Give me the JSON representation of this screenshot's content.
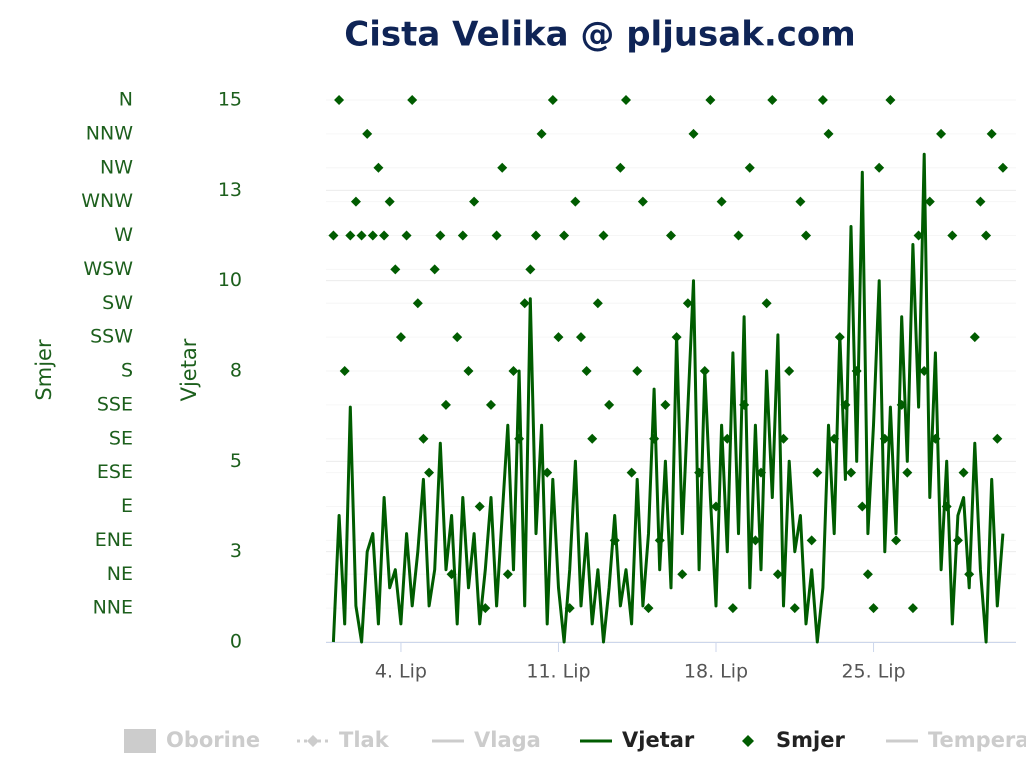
{
  "chart_data": {
    "type": "line",
    "title": "Cista Velika @ pljusak.com",
    "x": [
      1,
      1.25,
      1.5,
      1.75,
      2,
      2.25,
      2.5,
      2.75,
      3,
      3.25,
      3.5,
      3.75,
      4,
      4.25,
      4.5,
      4.75,
      5,
      5.25,
      5.5,
      5.75,
      6,
      6.25,
      6.5,
      6.75,
      7,
      7.25,
      7.5,
      7.75,
      8,
      8.25,
      8.5,
      8.75,
      9,
      9.25,
      9.5,
      9.75,
      10,
      10.25,
      10.5,
      10.75,
      11,
      11.25,
      11.5,
      11.75,
      12,
      12.25,
      12.5,
      12.75,
      13,
      13.25,
      13.5,
      13.75,
      14,
      14.25,
      14.5,
      14.75,
      15,
      15.25,
      15.5,
      15.75,
      16,
      16.25,
      16.5,
      16.75,
      17,
      17.25,
      17.5,
      17.75,
      18,
      18.25,
      18.5,
      18.75,
      19,
      19.25,
      19.5,
      19.75,
      20,
      20.25,
      20.5,
      20.75,
      21,
      21.25,
      21.5,
      21.75,
      22,
      22.25,
      22.5,
      22.75,
      23,
      23.25,
      23.5,
      23.75,
      24,
      24.25,
      24.5,
      24.75,
      25,
      25.25,
      25.5,
      25.75,
      26,
      26.25,
      26.5,
      26.75,
      27,
      27.25,
      27.5,
      27.75,
      28,
      28.25,
      28.5,
      28.75,
      29,
      29.25,
      29.5,
      29.75,
      30,
      30.25,
      30.5,
      30.75
    ],
    "xlim": [
      0.67,
      31.33
    ],
    "xticks": [
      {
        "value": 4,
        "label": "4. Lip"
      },
      {
        "value": 11,
        "label": "11. Lip"
      },
      {
        "value": 18,
        "label": "18. Lip"
      },
      {
        "value": 25,
        "label": "25. Lip"
      }
    ],
    "y_label": "Vjetar",
    "ylim": [
      0,
      15
    ],
    "yticks": [
      0,
      {
        "value": 2.5,
        "label": "3"
      },
      5,
      {
        "value": 7.5,
        "label": "8"
      },
      10,
      {
        "value": 12.5,
        "label": "13"
      },
      15
    ],
    "y2_label": "Smjer",
    "y2lim": [
      0,
      360
    ],
    "y2ticks": [
      {
        "value": 22.5,
        "label": "NNE"
      },
      {
        "value": 45,
        "label": "NE"
      },
      {
        "value": 67.5,
        "label": "ENE"
      },
      {
        "value": 90,
        "label": "E"
      },
      {
        "value": 112.5,
        "label": "ESE"
      },
      {
        "value": 135,
        "label": "SE"
      },
      {
        "value": 157.5,
        "label": "SSE"
      },
      {
        "value": 180,
        "label": "S"
      },
      {
        "value": 202.5,
        "label": "SSW"
      },
      {
        "value": 225,
        "label": "SW"
      },
      {
        "value": 247.5,
        "label": "WSW"
      },
      {
        "value": 270,
        "label": "W"
      },
      {
        "value": 292.5,
        "label": "WNW"
      },
      {
        "value": 315,
        "label": "NW"
      },
      {
        "value": 337.5,
        "label": "NNW"
      },
      {
        "value": 360,
        "label": "N"
      }
    ],
    "grid": true,
    "series": [
      {
        "name": "Vjetar",
        "color": "#005c00",
        "type": "line",
        "values": [
          0,
          3.5,
          0.5,
          6.5,
          1,
          0,
          2.5,
          3,
          0.5,
          4,
          1.5,
          2,
          0.5,
          3,
          1,
          2.5,
          4.5,
          1,
          2,
          5.5,
          2,
          3.5,
          0.5,
          4,
          1.5,
          3,
          0.5,
          2,
          4,
          1,
          3.5,
          6,
          2,
          7.5,
          1,
          9.5,
          3,
          6,
          0.5,
          4.5,
          1.5,
          0,
          2,
          5,
          1,
          3,
          0.5,
          2,
          0,
          1.5,
          3.5,
          1,
          2,
          0.5,
          4.5,
          1,
          3,
          7,
          2,
          5,
          1.5,
          8.5,
          3,
          6.5,
          10,
          2,
          7.5,
          4,
          1,
          6,
          2.5,
          8,
          3,
          9,
          1.5,
          6,
          2,
          7.5,
          4,
          8.5,
          1,
          5,
          2.5,
          3.5,
          0.5,
          2,
          0,
          1.5,
          6,
          3,
          8.5,
          4.5,
          11.5,
          5,
          13,
          3,
          6,
          10,
          2.5,
          6.5,
          3,
          9,
          5,
          11,
          6.5,
          13.5,
          4,
          8,
          2,
          5,
          0.5,
          3.5,
          4,
          1.5,
          5.5,
          2,
          0,
          4.5,
          1,
          3
        ]
      },
      {
        "name": "Smjer",
        "color": "#005c00",
        "type": "scatter",
        "axis": "y2",
        "values": [
          270,
          360,
          180,
          270,
          292.5,
          270,
          337.5,
          270,
          315,
          270,
          292.5,
          247.5,
          202.5,
          270,
          360,
          225,
          135,
          112.5,
          247.5,
          270,
          157.5,
          45,
          202.5,
          270,
          180,
          292.5,
          90,
          22.5,
          157.5,
          270,
          315,
          45,
          180,
          135,
          225,
          247.5,
          270,
          337.5,
          112.5,
          360,
          202.5,
          270,
          22.5,
          292.5,
          202.5,
          180,
          135,
          225,
          270,
          157.5,
          67.5,
          315,
          360,
          112.5,
          180,
          292.5,
          22.5,
          135,
          67.5,
          157.5,
          270,
          202.5,
          45,
          225,
          337.5,
          112.5,
          180,
          360,
          90,
          292.5,
          135,
          22.5,
          270,
          157.5,
          315,
          67.5,
          112.5,
          225,
          360,
          45,
          135,
          180,
          22.5,
          292.5,
          270,
          67.5,
          112.5,
          360,
          337.5,
          135,
          202.5,
          157.5,
          112.5,
          180,
          90,
          45,
          22.5,
          315,
          135,
          360,
          67.5,
          157.5,
          112.5,
          22.5,
          270,
          180,
          292.5,
          135,
          337.5,
          90,
          270,
          67.5,
          112.5,
          45,
          202.5,
          292.5,
          270,
          337.5,
          135,
          315
        ]
      }
    ],
    "legend": [
      {
        "name": "Oborine",
        "symbol": "rect",
        "visible": false
      },
      {
        "name": "Tlak",
        "symbol": "dash-diamond",
        "visible": false
      },
      {
        "name": "Vlaga",
        "symbol": "line",
        "visible": false
      },
      {
        "name": "Vjetar",
        "symbol": "line",
        "visible": true
      },
      {
        "name": "Smjer",
        "symbol": "diamond",
        "visible": true
      },
      {
        "name": "Temperatura",
        "symbol": "line",
        "visible": false
      }
    ]
  }
}
